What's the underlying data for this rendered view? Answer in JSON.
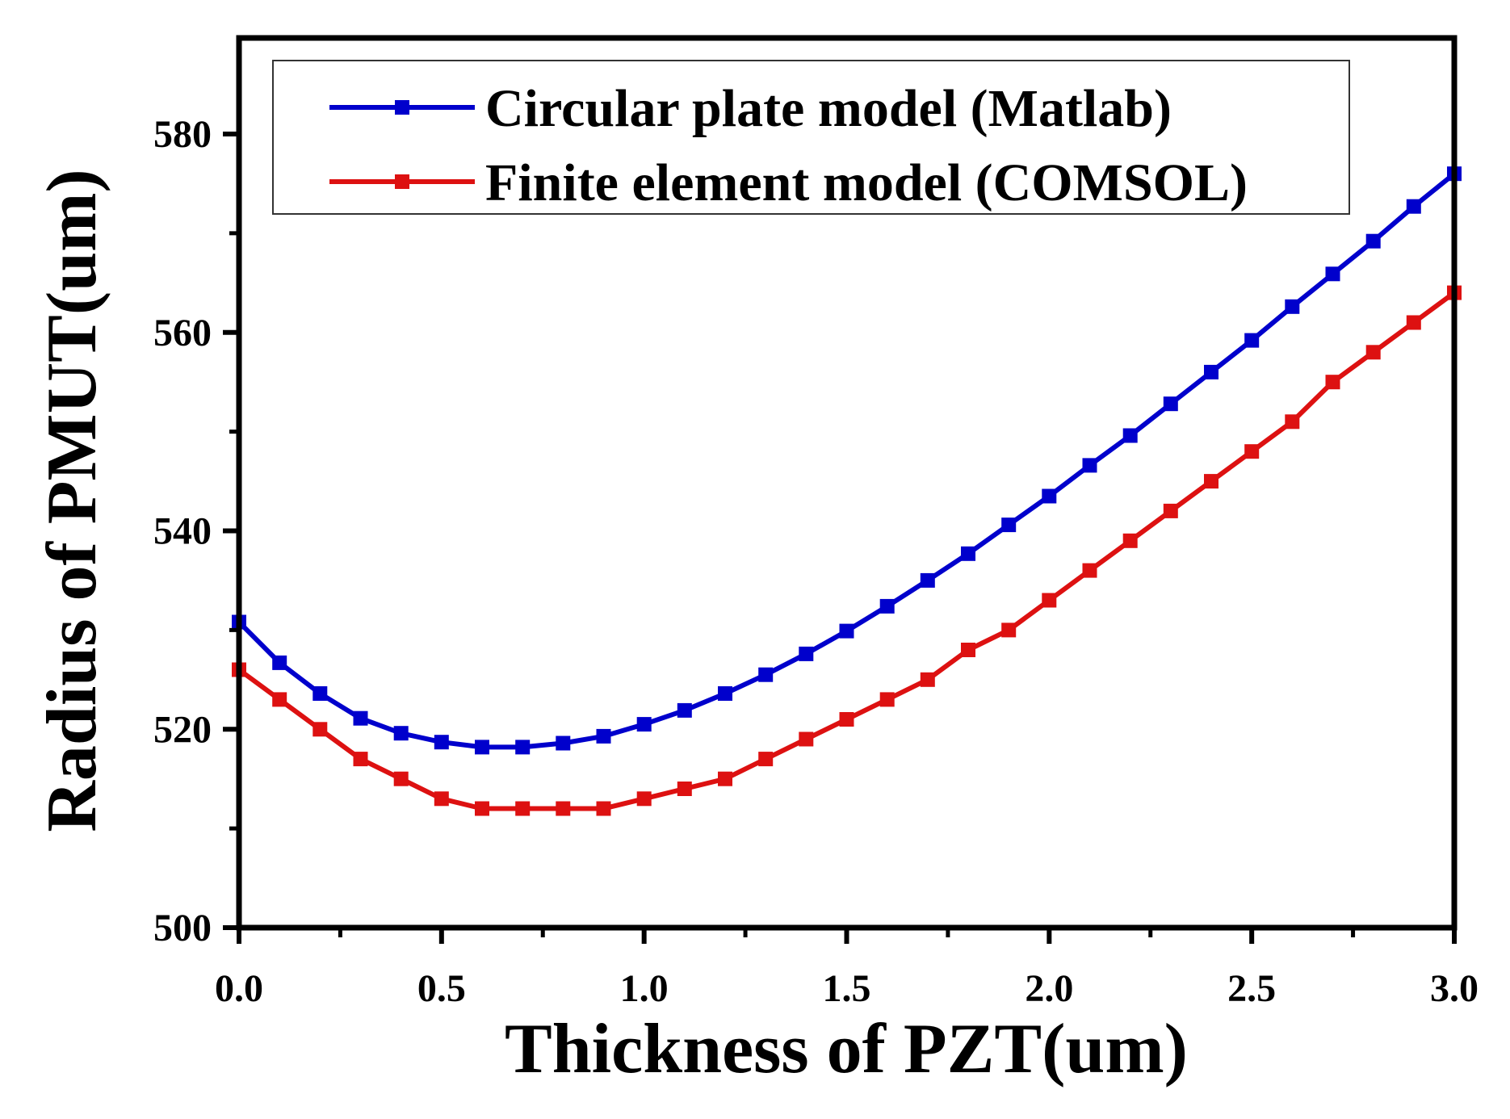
{
  "chart_data": {
    "type": "line",
    "title": "",
    "xlabel": "Thickness of PZT(um)",
    "ylabel": "Radius of PMUT(um)",
    "xlim": [
      0,
      3
    ],
    "ylim": [
      500,
      590
    ],
    "xticks": [
      0.0,
      0.5,
      1.0,
      1.5,
      2.0,
      2.5,
      3.0
    ],
    "xtick_labels": [
      "0.0",
      "0.5",
      "1.0",
      "1.5",
      "2.0",
      "2.5",
      "3.0"
    ],
    "yticks": [
      500,
      520,
      540,
      560,
      580
    ],
    "ytick_labels": [
      "500",
      "520",
      "540",
      "560",
      "580"
    ],
    "grid": false,
    "legend": "top",
    "x": [
      0.0,
      0.1,
      0.2,
      0.3,
      0.4,
      0.5,
      0.6,
      0.7,
      0.8,
      0.9,
      1.0,
      1.1,
      1.2,
      1.3,
      1.4,
      1.5,
      1.6,
      1.7,
      1.8,
      1.9,
      2.0,
      2.1,
      2.2,
      2.3,
      2.4,
      2.5,
      2.6,
      2.7,
      2.8,
      2.9,
      3.0
    ],
    "series": [
      {
        "name": "Circular plate model (Matlab)",
        "color": "#0000cc",
        "marker": "square",
        "values": [
          530.8,
          526.7,
          523.6,
          521.1,
          519.6,
          518.7,
          518.2,
          518.2,
          518.6,
          519.3,
          520.5,
          521.9,
          523.6,
          525.5,
          527.6,
          529.9,
          532.4,
          535.0,
          537.7,
          540.6,
          543.5,
          546.6,
          549.6,
          552.8,
          556.0,
          559.2,
          562.6,
          565.9,
          569.2,
          572.7,
          576.0
        ]
      },
      {
        "name": "Finite element model (COMSOL)",
        "color": "#dd1111",
        "marker": "square",
        "values": [
          526.0,
          523.0,
          520.0,
          517.0,
          515.0,
          513.0,
          512.0,
          512.0,
          512.0,
          512.0,
          513.0,
          514.0,
          515.0,
          517.0,
          519.0,
          521.0,
          523.0,
          525.0,
          528.0,
          530.0,
          533.0,
          536.0,
          539.0,
          542.0,
          545.0,
          548.0,
          551.0,
          555.0,
          558.0,
          561.0,
          564.0
        ]
      }
    ]
  }
}
